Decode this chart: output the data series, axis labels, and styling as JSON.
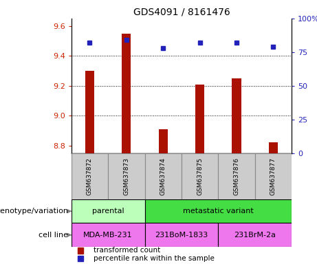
{
  "title": "GDS4091 / 8161476",
  "samples": [
    "GSM637872",
    "GSM637873",
    "GSM637874",
    "GSM637875",
    "GSM637876",
    "GSM637877"
  ],
  "transformed_counts": [
    9.3,
    9.55,
    8.91,
    9.21,
    9.25,
    8.82
  ],
  "percentile_ranks": [
    82,
    84,
    78,
    82,
    82,
    79
  ],
  "ylim_left": [
    8.75,
    9.65
  ],
  "ylim_right": [
    0,
    100
  ],
  "yticks_left": [
    8.8,
    9.0,
    9.2,
    9.4,
    9.6
  ],
  "yticks_right": [
    0,
    25,
    50,
    75,
    100
  ],
  "bar_color": "#aa1100",
  "dot_color": "#2222bb",
  "bar_bottom": 8.75,
  "bar_width": 0.25,
  "gridlines": [
    9.0,
    9.2,
    9.4
  ],
  "genotype_groups": [
    {
      "label": "parental",
      "start": 0,
      "end": 2,
      "color": "#bbffbb"
    },
    {
      "label": "metastatic variant",
      "start": 2,
      "end": 6,
      "color": "#44dd44"
    }
  ],
  "cell_lines": [
    {
      "label": "MDA-MB-231",
      "start": 0,
      "end": 2,
      "color": "#ee77ee"
    },
    {
      "label": "231BoM-1833",
      "start": 2,
      "end": 4,
      "color": "#ee77ee"
    },
    {
      "label": "231BrM-2a",
      "start": 4,
      "end": 6,
      "color": "#ee77ee"
    }
  ],
  "genotype_label": "genotype/variation",
  "cellline_label": "cell line",
  "legend_transformed": "transformed count",
  "legend_percentile": "percentile rank within the sample",
  "background_color": "#ffffff",
  "tick_label_color_left": "#cc2200",
  "tick_label_color_right": "#2222bb",
  "sample_box_color": "#cccccc",
  "sample_box_edge": "#888888"
}
